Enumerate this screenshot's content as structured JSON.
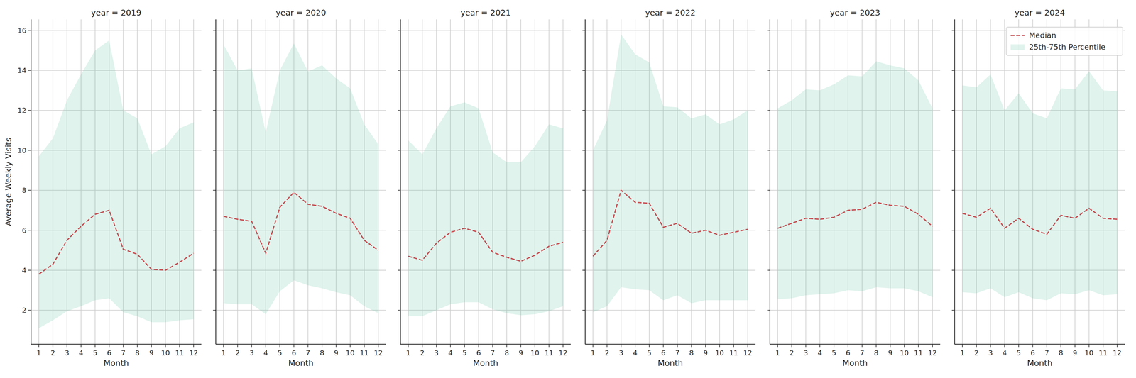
{
  "chart_data": [
    {
      "type": "line",
      "title": "year = 2019",
      "x_label": "Month",
      "y_label": "Average Weekly Visits",
      "x": [
        1,
        2,
        3,
        4,
        5,
        6,
        7,
        8,
        9,
        10,
        11,
        12
      ],
      "xlim": [
        0.45,
        12.55
      ],
      "xticks": [
        1,
        2,
        3,
        4,
        5,
        6,
        7,
        8,
        9,
        10,
        11,
        12
      ],
      "ylim": [
        0.3,
        16.55
      ],
      "yticks": [
        2,
        4,
        6,
        8,
        10,
        12,
        14,
        16
      ],
      "grid": true,
      "series": [
        {
          "type": "line",
          "line_style": "dashed",
          "color": "#c44e52",
          "values": [
            3.8,
            4.3,
            5.5,
            6.2,
            6.8,
            7.0,
            5.05,
            4.8,
            4.05,
            4.0,
            4.4,
            4.85
          ]
        },
        {
          "type": "area",
          "color": "#66c2a5",
          "lower": [
            1.1,
            1.5,
            1.95,
            2.2,
            2.5,
            2.6,
            1.9,
            1.7,
            1.4,
            1.4,
            1.5,
            1.55
          ],
          "upper": [
            9.7,
            10.6,
            12.5,
            13.8,
            15.0,
            15.5,
            12.0,
            11.6,
            9.8,
            10.2,
            11.1,
            11.4
          ]
        }
      ]
    },
    {
      "type": "line",
      "title": "year = 2020",
      "x_label": "Month",
      "tick_labels": "x",
      "x": [
        1,
        2,
        3,
        4,
        5,
        6,
        7,
        8,
        9,
        10,
        11,
        12
      ],
      "xlim": [
        0.45,
        12.55
      ],
      "xticks": [
        1,
        2,
        3,
        4,
        5,
        6,
        7,
        8,
        9,
        10,
        11,
        12
      ],
      "ylim": [
        0.3,
        16.55
      ],
      "yticks": [
        2,
        4,
        6,
        8,
        10,
        12,
        14,
        16
      ],
      "grid": true,
      "series": [
        {
          "type": "line",
          "line_style": "dashed",
          "color": "#c44e52",
          "values": [
            6.7,
            6.55,
            6.45,
            4.85,
            7.15,
            7.9,
            7.3,
            7.2,
            6.85,
            6.6,
            5.5,
            5.0
          ]
        },
        {
          "type": "area",
          "color": "#66c2a5",
          "lower": [
            2.35,
            2.3,
            2.3,
            1.8,
            2.95,
            3.5,
            3.25,
            3.1,
            2.9,
            2.75,
            2.2,
            1.85
          ],
          "upper": [
            15.3,
            14.0,
            14.1,
            10.9,
            14.0,
            15.35,
            13.95,
            14.25,
            13.6,
            13.1,
            11.3,
            10.3
          ]
        }
      ]
    },
    {
      "type": "line",
      "title": "year = 2021",
      "x_label": "Month",
      "tick_labels": "x",
      "x": [
        1,
        2,
        3,
        4,
        5,
        6,
        7,
        8,
        9,
        10,
        11,
        12
      ],
      "xlim": [
        0.45,
        12.55
      ],
      "xticks": [
        1,
        2,
        3,
        4,
        5,
        6,
        7,
        8,
        9,
        10,
        11,
        12
      ],
      "ylim": [
        0.3,
        16.55
      ],
      "yticks": [
        2,
        4,
        6,
        8,
        10,
        12,
        14,
        16
      ],
      "grid": true,
      "series": [
        {
          "type": "line",
          "line_style": "dashed",
          "color": "#c44e52",
          "values": [
            4.7,
            4.5,
            5.35,
            5.9,
            6.1,
            5.9,
            4.9,
            4.65,
            4.45,
            4.75,
            5.2,
            5.4
          ]
        },
        {
          "type": "area",
          "color": "#66c2a5",
          "lower": [
            1.7,
            1.7,
            2.0,
            2.3,
            2.4,
            2.4,
            2.05,
            1.85,
            1.75,
            1.8,
            1.95,
            2.2
          ],
          "upper": [
            10.5,
            9.8,
            11.1,
            12.2,
            12.4,
            12.1,
            9.9,
            9.4,
            9.4,
            10.2,
            11.3,
            11.1
          ]
        }
      ]
    },
    {
      "type": "line",
      "title": "year = 2022",
      "x_label": "Month",
      "tick_labels": "x",
      "x": [
        1,
        2,
        3,
        4,
        5,
        6,
        7,
        8,
        9,
        10,
        11,
        12
      ],
      "xlim": [
        0.45,
        12.55
      ],
      "xticks": [
        1,
        2,
        3,
        4,
        5,
        6,
        7,
        8,
        9,
        10,
        11,
        12
      ],
      "ylim": [
        0.3,
        16.55
      ],
      "yticks": [
        2,
        4,
        6,
        8,
        10,
        12,
        14,
        16
      ],
      "grid": true,
      "series": [
        {
          "type": "line",
          "line_style": "dashed",
          "color": "#c44e52",
          "values": [
            4.7,
            5.5,
            8.0,
            7.4,
            7.35,
            6.15,
            6.35,
            5.85,
            6.0,
            5.75,
            5.9,
            6.05
          ]
        },
        {
          "type": "area",
          "color": "#66c2a5",
          "lower": [
            1.9,
            2.2,
            3.15,
            3.05,
            3.0,
            2.5,
            2.75,
            2.35,
            2.5,
            2.5,
            2.5,
            2.5
          ],
          "upper": [
            10.0,
            11.5,
            15.8,
            14.8,
            14.4,
            12.2,
            12.15,
            11.6,
            11.8,
            11.3,
            11.55,
            12.0
          ]
        }
      ]
    },
    {
      "type": "line",
      "title": "year = 2023",
      "x_label": "Month",
      "tick_labels": "x",
      "x": [
        1,
        2,
        3,
        4,
        5,
        6,
        7,
        8,
        9,
        10,
        11,
        12
      ],
      "xlim": [
        0.45,
        12.55
      ],
      "xticks": [
        1,
        2,
        3,
        4,
        5,
        6,
        7,
        8,
        9,
        10,
        11,
        12
      ],
      "ylim": [
        0.3,
        16.55
      ],
      "yticks": [
        2,
        4,
        6,
        8,
        10,
        12,
        14,
        16
      ],
      "grid": true,
      "series": [
        {
          "type": "line",
          "line_style": "dashed",
          "color": "#c44e52",
          "values": [
            6.1,
            6.35,
            6.6,
            6.55,
            6.65,
            7.0,
            7.05,
            7.4,
            7.25,
            7.2,
            6.8,
            6.2
          ]
        },
        {
          "type": "area",
          "color": "#66c2a5",
          "lower": [
            2.55,
            2.6,
            2.75,
            2.8,
            2.85,
            3.0,
            2.95,
            3.15,
            3.1,
            3.1,
            2.95,
            2.65
          ],
          "upper": [
            12.1,
            12.5,
            13.05,
            13.0,
            13.3,
            13.75,
            13.7,
            14.45,
            14.25,
            14.1,
            13.5,
            12.1
          ]
        }
      ]
    },
    {
      "type": "line",
      "title": "year = 2024",
      "x_label": "Month",
      "tick_labels": "x",
      "legend": "upper right",
      "x": [
        1,
        2,
        3,
        4,
        5,
        6,
        7,
        8,
        9,
        10,
        11,
        12
      ],
      "xlim": [
        0.45,
        12.55
      ],
      "xticks": [
        1,
        2,
        3,
        4,
        5,
        6,
        7,
        8,
        9,
        10,
        11,
        12
      ],
      "ylim": [
        0.3,
        16.55
      ],
      "yticks": [
        2,
        4,
        6,
        8,
        10,
        12,
        14,
        16
      ],
      "grid": true,
      "series": [
        {
          "name": "Median",
          "type": "line",
          "line_style": "dashed",
          "color": "#c44e52",
          "values": [
            6.85,
            6.65,
            7.1,
            6.1,
            6.6,
            6.05,
            5.8,
            6.75,
            6.6,
            7.1,
            6.6,
            6.55
          ]
        },
        {
          "name": "25th-75th Percentile",
          "type": "area",
          "color": "#66c2a5",
          "lower": [
            2.9,
            2.85,
            3.1,
            2.65,
            2.9,
            2.6,
            2.5,
            2.85,
            2.8,
            3.0,
            2.75,
            2.8
          ],
          "upper": [
            13.25,
            13.15,
            13.8,
            12.0,
            12.85,
            11.85,
            11.6,
            13.1,
            13.05,
            13.95,
            13.0,
            12.95
          ]
        }
      ]
    }
  ]
}
